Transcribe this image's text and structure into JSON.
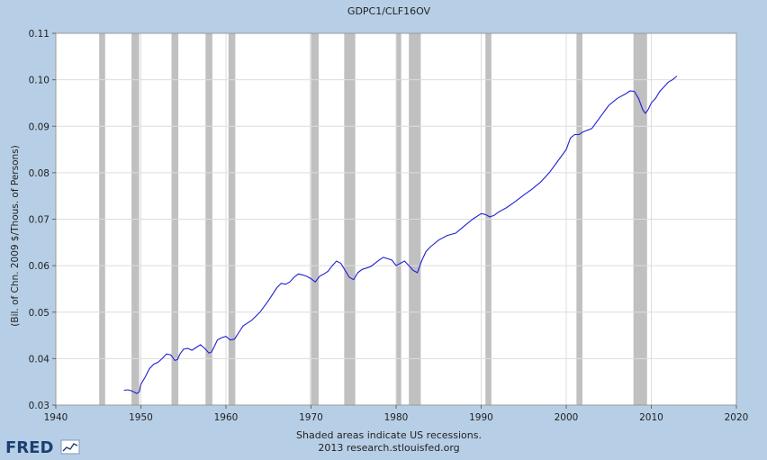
{
  "chart_data": {
    "type": "line",
    "title": "GDPC1/CLF16OV",
    "ylabel": "(Bil. of Chn. 2009 $/Thous. of Persons)",
    "xlabel": "",
    "xlim": [
      1940,
      2020
    ],
    "ylim": [
      0.03,
      0.11
    ],
    "x_ticks": [
      1940,
      1950,
      1960,
      1970,
      1980,
      1990,
      2000,
      2010,
      2020
    ],
    "y_ticks": [
      0.03,
      0.04,
      0.05,
      0.06,
      0.07,
      0.08,
      0.09,
      0.1,
      0.11
    ],
    "y_tick_labels": [
      "0.03",
      "0.04",
      "0.05",
      "0.06",
      "0.07",
      "0.08",
      "0.09",
      "0.10",
      "0.11"
    ],
    "grid": true,
    "line_color": "#1f1fd6",
    "recession_color": "#c0c0c0",
    "recessions": [
      [
        1945.1,
        1945.8
      ],
      [
        1948.9,
        1949.8
      ],
      [
        1953.6,
        1954.4
      ],
      [
        1957.6,
        1958.4
      ],
      [
        1960.3,
        1961.1
      ],
      [
        1969.9,
        1970.9
      ],
      [
        1973.9,
        1975.2
      ],
      [
        1980.0,
        1980.6
      ],
      [
        1981.5,
        1982.9
      ],
      [
        1990.5,
        1991.2
      ],
      [
        2001.2,
        2001.9
      ],
      [
        2007.9,
        2009.5
      ]
    ],
    "series": [
      {
        "x": [
          1948.0,
          1948.5,
          1949.0,
          1949.5,
          1949.8,
          1950.0,
          1950.5,
          1951.0,
          1951.5,
          1952.0,
          1952.5,
          1953.0,
          1953.5,
          1954.0,
          1954.3,
          1954.6,
          1955.0,
          1955.5,
          1956.0,
          1956.5,
          1957.0,
          1957.5,
          1958.0,
          1958.3,
          1958.6,
          1959.0,
          1959.5,
          1960.0,
          1960.5,
          1961.0,
          1961.5,
          1962.0,
          1962.5,
          1963.0,
          1964.0,
          1965.0,
          1966.0,
          1966.5,
          1967.0,
          1967.5,
          1968.0,
          1968.5,
          1969.0,
          1969.5,
          1970.0,
          1970.5,
          1971.0,
          1971.5,
          1972.0,
          1972.5,
          1973.0,
          1973.5,
          1974.0,
          1974.5,
          1975.0,
          1975.5,
          1976.0,
          1977.0,
          1978.0,
          1978.5,
          1979.0,
          1979.5,
          1980.0,
          1980.5,
          1981.0,
          1981.5,
          1982.0,
          1982.5,
          1983.0,
          1983.5,
          1984.0,
          1985.0,
          1986.0,
          1987.0,
          1988.0,
          1989.0,
          1990.0,
          1990.5,
          1991.0,
          1991.5,
          1992.0,
          1993.0,
          1994.0,
          1995.0,
          1996.0,
          1997.0,
          1998.0,
          1999.0,
          2000.0,
          2000.5,
          2001.0,
          2001.5,
          2002.0,
          2003.0,
          2004.0,
          2005.0,
          2006.0,
          2007.0,
          2007.5,
          2008.0,
          2008.5,
          2009.0,
          2009.3,
          2009.6,
          2010.0,
          2010.5,
          2011.0,
          2011.5,
          2012.0,
          2012.5,
          2013.0
        ],
        "y": [
          0.0332,
          0.0333,
          0.033,
          0.0325,
          0.0328,
          0.0345,
          0.036,
          0.0378,
          0.0388,
          0.0392,
          0.04,
          0.041,
          0.0408,
          0.0396,
          0.0398,
          0.041,
          0.042,
          0.0422,
          0.0418,
          0.0424,
          0.043,
          0.0422,
          0.0412,
          0.0414,
          0.0425,
          0.044,
          0.0445,
          0.0448,
          0.044,
          0.0442,
          0.0456,
          0.047,
          0.0476,
          0.0482,
          0.05,
          0.0525,
          0.0553,
          0.0562,
          0.056,
          0.0565,
          0.0575,
          0.0582,
          0.058,
          0.0577,
          0.0572,
          0.0565,
          0.0577,
          0.0582,
          0.0588,
          0.06,
          0.061,
          0.0605,
          0.059,
          0.0575,
          0.057,
          0.0585,
          0.0592,
          0.0598,
          0.0612,
          0.0618,
          0.0615,
          0.0612,
          0.06,
          0.0605,
          0.061,
          0.06,
          0.059,
          0.0585,
          0.061,
          0.063,
          0.064,
          0.0655,
          0.0665,
          0.067,
          0.0685,
          0.07,
          0.0712,
          0.071,
          0.0705,
          0.0708,
          0.0715,
          0.0725,
          0.0738,
          0.0752,
          0.0765,
          0.078,
          0.08,
          0.0825,
          0.085,
          0.0875,
          0.0882,
          0.0882,
          0.0888,
          0.0895,
          0.092,
          0.0945,
          0.096,
          0.097,
          0.0976,
          0.0975,
          0.096,
          0.0935,
          0.0928,
          0.0935,
          0.095,
          0.096,
          0.0975,
          0.0985,
          0.0995,
          0.1,
          0.1008
        ]
      }
    ],
    "footer_line1": "Shaded areas indicate US recessions.",
    "footer_line2": "2013 research.stlouisfed.org",
    "logo_text": "FRED"
  }
}
